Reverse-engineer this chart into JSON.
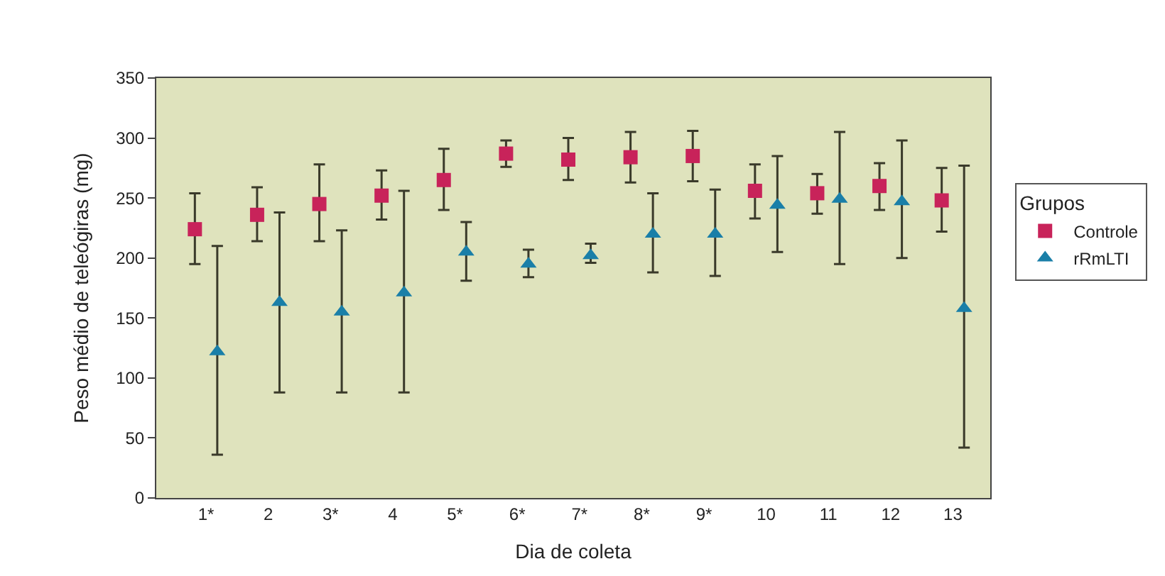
{
  "chart_data": {
    "type": "scatter",
    "xlabel": "Dia de coleta",
    "ylabel": "Peso médio de teleógiras (mg)",
    "legend_title": "Grupos",
    "legend": "right",
    "categories": [
      "1*",
      "2",
      "3*",
      "4",
      "5*",
      "6*",
      "7*",
      "8*",
      "9*",
      "10",
      "11",
      "12",
      "13"
    ],
    "ylim": [
      0,
      350
    ],
    "yticks": [
      0,
      50,
      100,
      150,
      200,
      250,
      300,
      350
    ],
    "grid": false,
    "series": [
      {
        "name": "Controle",
        "color": "#c8235a",
        "marker": "square",
        "values": [
          224,
          236,
          245,
          252,
          265,
          287,
          282,
          284,
          285,
          256,
          254,
          260,
          248
        ],
        "errors": [
          [
            195,
            254
          ],
          [
            214,
            259
          ],
          [
            214,
            278
          ],
          [
            232,
            273
          ],
          [
            240,
            291
          ],
          [
            276,
            298
          ],
          [
            265,
            300
          ],
          [
            263,
            305
          ],
          [
            264,
            306
          ],
          [
            233,
            278
          ],
          [
            237,
            270
          ],
          [
            240,
            279
          ],
          [
            222,
            275
          ]
        ]
      },
      {
        "name": "rRmLTI",
        "color": "#1a7fa8",
        "marker": "triangle",
        "values": [
          122,
          163,
          155,
          171,
          205,
          195,
          202,
          220,
          220,
          244,
          249,
          247,
          158
        ],
        "errors": [
          [
            36,
            210
          ],
          [
            88,
            238
          ],
          [
            88,
            223
          ],
          [
            88,
            256
          ],
          [
            181,
            230
          ],
          [
            184,
            207
          ],
          [
            196,
            212
          ],
          [
            188,
            254
          ],
          [
            185,
            257
          ],
          [
            205,
            285
          ],
          [
            195,
            305
          ],
          [
            200,
            298
          ],
          [
            42,
            277
          ]
        ]
      }
    ]
  }
}
